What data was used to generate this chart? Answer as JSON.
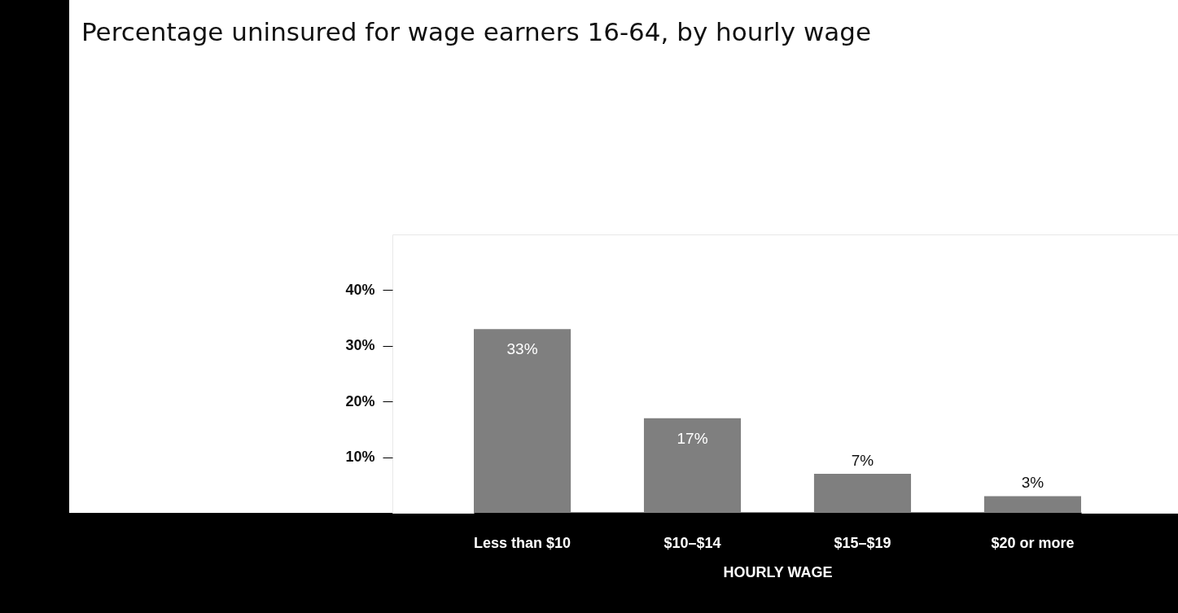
{
  "chart_data": {
    "type": "bar",
    "title": "Percentage uninsured for wage earners 16-64, by hourly wage",
    "xlabel": "HOURLY WAGE",
    "categories": [
      "Less than $10",
      "$10–$14",
      "$15–$19",
      "$20 or more"
    ],
    "values": [
      33,
      17,
      7,
      3
    ],
    "value_labels": [
      "33%",
      "17%",
      "7%",
      "3%"
    ],
    "color": "#7f7f7f",
    "ylim": [
      0,
      50
    ],
    "yticks": [
      {
        "value": 10,
        "label": "10%"
      },
      {
        "value": 20,
        "label": "20%"
      },
      {
        "value": 30,
        "label": "30%"
      },
      {
        "value": 40,
        "label": "40%"
      }
    ],
    "grid": false
  }
}
